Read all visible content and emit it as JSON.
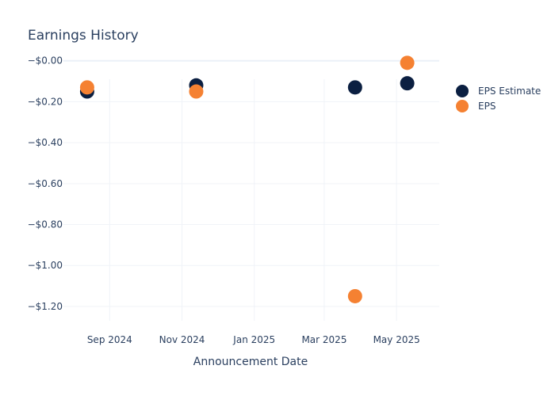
{
  "chart_data": {
    "type": "scatter",
    "title": "Earnings History",
    "xlabel": "Announcement Date",
    "ylabel": "",
    "x_ticks": [
      {
        "label": "Sep 2024",
        "date": "2024-09-01"
      },
      {
        "label": "Nov 2024",
        "date": "2024-11-01"
      },
      {
        "label": "Jan 2025",
        "date": "2025-01-01"
      },
      {
        "label": "Mar 2025",
        "date": "2025-03-01"
      },
      {
        "label": "May 2025",
        "date": "2025-05-01"
      }
    ],
    "y_ticks": [
      {
        "label": "−$0.00",
        "value": 0
      },
      {
        "label": "−$0.20",
        "value": -0.2
      },
      {
        "label": "−$0.40",
        "value": -0.4
      },
      {
        "label": "−$0.60",
        "value": -0.6
      },
      {
        "label": "−$0.80",
        "value": -0.8
      },
      {
        "label": "−$1.00",
        "value": -1.0
      },
      {
        "label": "−$1.20",
        "value": -1.2
      }
    ],
    "xlim": [
      "2024-07-24",
      "2025-06-06"
    ],
    "ylim": [
      -1.27,
      -0.09
    ],
    "grid": true,
    "legend_position": "top-right",
    "series": [
      {
        "name": "EPS Estimate",
        "color": "#0b1f41",
        "points": [
          {
            "x": "2024-08-13",
            "y": -0.15
          },
          {
            "x": "2024-11-13",
            "y": -0.12
          },
          {
            "x": "2025-03-27",
            "y": -0.13
          },
          {
            "x": "2025-05-10",
            "y": -0.11
          }
        ]
      },
      {
        "name": "EPS",
        "color": "#f58132",
        "points": [
          {
            "x": "2024-08-13",
            "y": -0.13
          },
          {
            "x": "2024-11-13",
            "y": -0.15
          },
          {
            "x": "2025-03-27",
            "y": -1.15
          },
          {
            "x": "2025-05-10",
            "y": -0.01
          }
        ]
      }
    ]
  }
}
